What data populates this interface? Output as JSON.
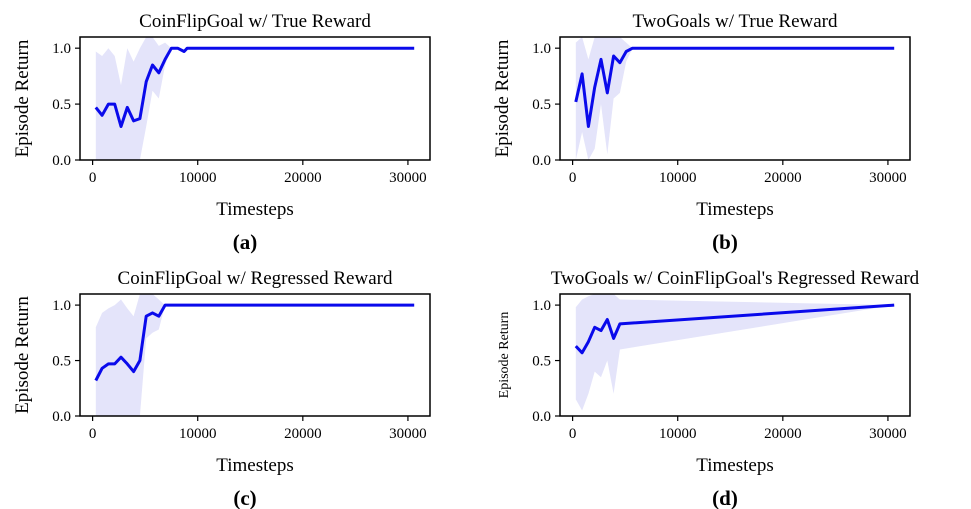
{
  "figure": {
    "line_color": "#0a0aeb",
    "band_color": "#e4e4fa"
  },
  "chart_data": [
    {
      "type": "line",
      "panel_label": "(a)",
      "title": "CoinFlipGoal w/ True Reward",
      "xlabel": "Timesteps",
      "ylabel": "Episode Return",
      "xlim": [
        -1200,
        32100
      ],
      "ylim": [
        0,
        1.1
      ],
      "xticks": [
        0,
        10000,
        20000,
        30000
      ],
      "yticks": [
        0.0,
        0.5,
        1.0
      ],
      "xtick_labels": [
        "0",
        "10000",
        "20000",
        "30000"
      ],
      "ytick_labels": [
        "0.0",
        "0.5",
        "1.0"
      ],
      "grid": false,
      "series": [
        {
          "x": [
            300,
            900,
            1500,
            2100,
            2700,
            3300,
            3900,
            4500,
            5100,
            5700,
            6300,
            6900,
            7500,
            8100,
            8700,
            9000,
            30600
          ],
          "y": [
            0.47,
            0.4,
            0.5,
            0.5,
            0.3,
            0.47,
            0.35,
            0.37,
            0.7,
            0.85,
            0.78,
            0.9,
            1.0,
            1.0,
            0.97,
            1.0,
            1.0
          ],
          "lower": [
            0.0,
            0.0,
            0.0,
            0.0,
            0.0,
            0.0,
            0.0,
            0.0,
            0.3,
            0.62,
            0.55,
            0.85,
            1.0,
            1.0,
            0.97,
            1.0,
            1.0
          ],
          "upper": [
            0.97,
            0.93,
            1.0,
            0.93,
            0.67,
            1.0,
            0.88,
            1.0,
            1.1,
            1.1,
            1.02,
            1.05,
            1.0,
            1.0,
            0.97,
            1.0,
            1.0
          ]
        }
      ]
    },
    {
      "type": "line",
      "panel_label": "(b)",
      "title": "TwoGoals w/ True Reward",
      "xlabel": "Timesteps",
      "ylabel": "Episode Return",
      "xlim": [
        -1200,
        32100
      ],
      "ylim": [
        0,
        1.1
      ],
      "xticks": [
        0,
        10000,
        20000,
        30000
      ],
      "yticks": [
        0.0,
        0.5,
        1.0
      ],
      "xtick_labels": [
        "0",
        "10000",
        "20000",
        "30000"
      ],
      "ytick_labels": [
        "0.0",
        "0.5",
        "1.0"
      ],
      "grid": false,
      "series": [
        {
          "x": [
            300,
            900,
            1500,
            2100,
            2700,
            3300,
            3900,
            4500,
            5100,
            5700,
            30600
          ],
          "y": [
            0.52,
            0.77,
            0.3,
            0.65,
            0.9,
            0.6,
            0.93,
            0.87,
            0.97,
            1.0,
            1.0
          ],
          "lower": [
            0.0,
            0.25,
            0.0,
            0.1,
            0.5,
            0.05,
            0.55,
            0.6,
            0.88,
            1.0,
            1.0
          ],
          "upper": [
            1.05,
            1.1,
            0.9,
            1.1,
            1.1,
            1.1,
            1.1,
            1.1,
            1.05,
            1.0,
            1.0
          ]
        }
      ]
    },
    {
      "type": "line",
      "panel_label": "(c)",
      "title": "CoinFlipGoal w/ Regressed Reward",
      "xlabel": "Timesteps",
      "ylabel": "Episode Return",
      "xlim": [
        -1200,
        32100
      ],
      "ylim": [
        0,
        1.1
      ],
      "xticks": [
        0,
        10000,
        20000,
        30000
      ],
      "yticks": [
        0.0,
        0.5,
        1.0
      ],
      "xtick_labels": [
        "0",
        "10000",
        "20000",
        "30000"
      ],
      "ytick_labels": [
        "0.0",
        "0.5",
        "1.0"
      ],
      "grid": false,
      "series": [
        {
          "x": [
            300,
            900,
            1500,
            2100,
            2700,
            3300,
            3900,
            4500,
            5100,
            5700,
            6300,
            6900,
            30600
          ],
          "y": [
            0.32,
            0.43,
            0.47,
            0.47,
            0.53,
            0.47,
            0.4,
            0.5,
            0.9,
            0.93,
            0.9,
            1.0,
            1.0
          ],
          "lower": [
            0.0,
            0.0,
            0.0,
            0.0,
            0.0,
            0.0,
            0.0,
            0.0,
            0.7,
            0.75,
            0.78,
            1.0,
            1.0
          ],
          "upper": [
            0.8,
            0.93,
            0.97,
            1.0,
            1.05,
            0.97,
            0.9,
            1.1,
            1.1,
            1.1,
            1.05,
            1.0,
            1.0
          ]
        }
      ]
    },
    {
      "type": "line",
      "panel_label": "(d)",
      "title": "TwoGoals w/ CoinFlipGoal's Regressed Reward",
      "xlabel": "Timesteps",
      "ylabel": "Episode Return",
      "xlim": [
        -1200,
        32100
      ],
      "ylim": [
        0,
        1.1
      ],
      "xticks": [
        0,
        10000,
        20000,
        30000
      ],
      "yticks": [
        0.0,
        0.5,
        1.0
      ],
      "xtick_labels": [
        "0",
        "10000",
        "20000",
        "30000"
      ],
      "ytick_labels": [
        "0.0",
        "0.5",
        "1.0"
      ],
      "grid": false,
      "series": [
        {
          "x": [
            300,
            900,
            1500,
            2100,
            2700,
            3300,
            3900,
            4500,
            30600
          ],
          "y": [
            0.63,
            0.57,
            0.67,
            0.8,
            0.77,
            0.87,
            0.7,
            0.83,
            1.0
          ],
          "lower": [
            0.15,
            0.05,
            0.2,
            0.4,
            0.35,
            0.5,
            0.2,
            0.6,
            1.0
          ],
          "upper": [
            0.98,
            1.05,
            1.08,
            1.1,
            1.1,
            1.1,
            1.1,
            1.05,
            1.0
          ]
        }
      ]
    }
  ]
}
